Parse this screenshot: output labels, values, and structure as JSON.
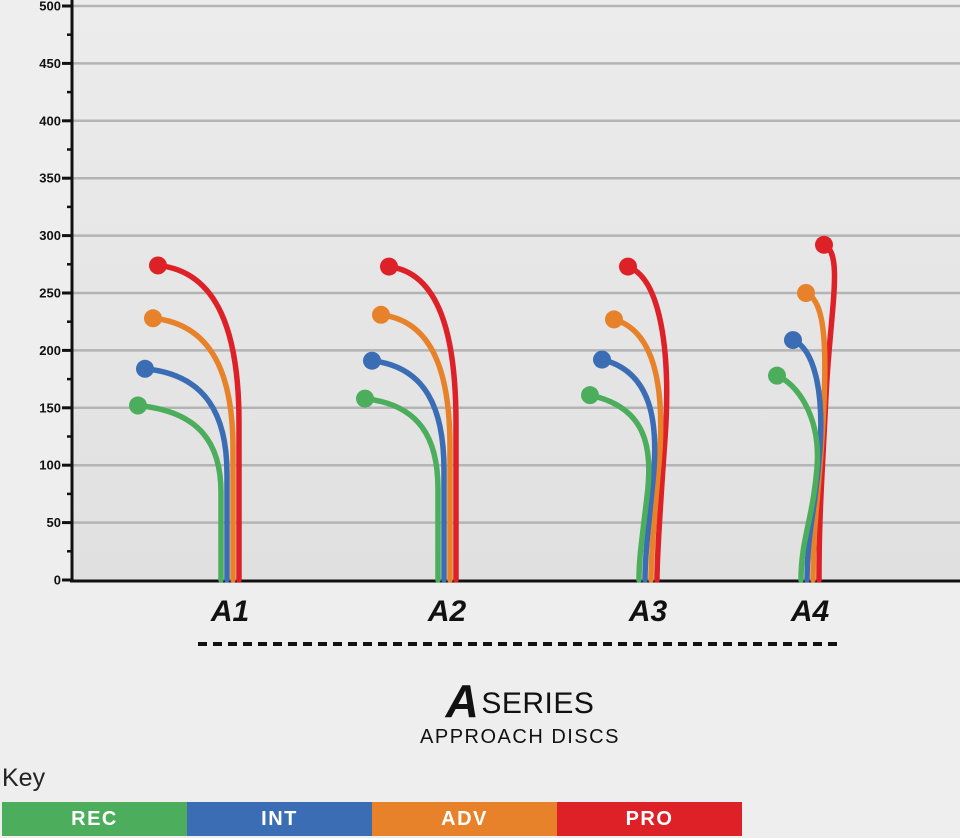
{
  "chart_data": {
    "type": "line",
    "ylim": [
      0,
      500
    ],
    "y_ticks": [
      "0",
      "50",
      "100",
      "150",
      "200",
      "250",
      "300",
      "350",
      "400",
      "450",
      "500"
    ],
    "grid": true,
    "categories": [
      "A1",
      "A2",
      "A3",
      "A4"
    ],
    "series": [
      {
        "name": "REC",
        "color": "#4cae5c",
        "values": [
          152,
          158,
          161,
          178
        ]
      },
      {
        "name": "INT",
        "color": "#3a6db4",
        "values": [
          184,
          191,
          192,
          209
        ]
      },
      {
        "name": "ADV",
        "color": "#e8822a",
        "values": [
          228,
          231,
          227,
          250
        ]
      },
      {
        "name": "PRO",
        "color": "#de2027",
        "values": [
          274,
          273,
          273,
          292
        ]
      }
    ]
  },
  "branding": {
    "logo_letter": "A",
    "title_word": "SERIES",
    "subtitle": "APPROACH DISCS"
  },
  "key": {
    "label": "Key",
    "items": [
      {
        "label": "REC",
        "color": "#4cae5c"
      },
      {
        "label": "INT",
        "color": "#3a6db4"
      },
      {
        "label": "ADV",
        "color": "#e8822a"
      },
      {
        "label": "PRO",
        "color": "#de2027"
      }
    ]
  }
}
